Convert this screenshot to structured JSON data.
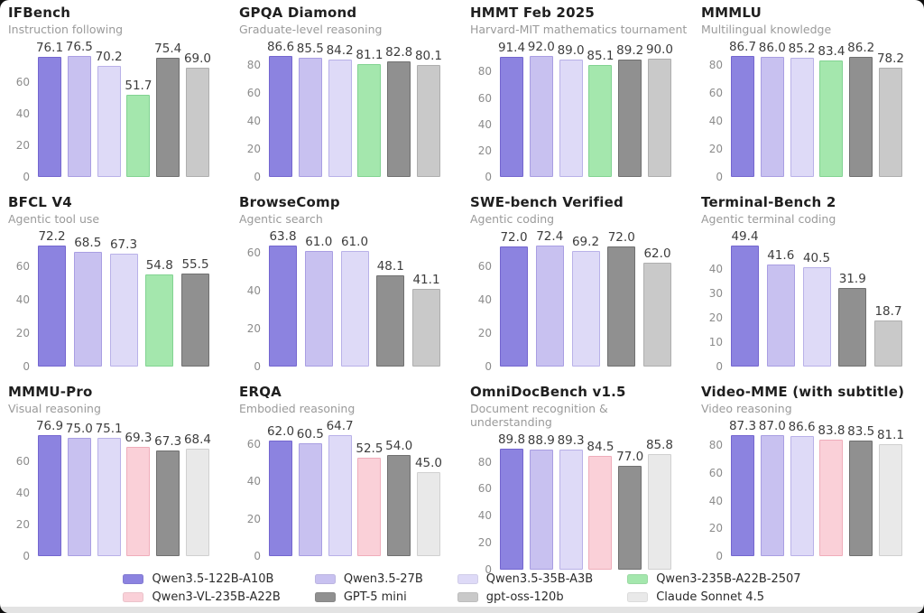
{
  "models": {
    "q122b": {
      "label": "Qwen3.5-122B-A10B",
      "color": "#8c83e0",
      "border": "#7466cf"
    },
    "q27b": {
      "label": "Qwen3.5-27B",
      "color": "#c8c1f0",
      "border": "#a99ee2"
    },
    "q35b": {
      "label": "Qwen3.5-35B-A3B",
      "color": "#dedaf7",
      "border": "#b9b1e8"
    },
    "q2507": {
      "label": "Qwen3-235B-A22B-2507",
      "color": "#a4e7ad",
      "border": "#82d392"
    },
    "qvl": {
      "label": "Qwen3-VL-235B-A22B",
      "color": "#fad0d8",
      "border": "#efadbb"
    },
    "gpt5mini": {
      "label": "GPT-5 mini",
      "color": "#909090",
      "border": "#707070"
    },
    "gptoss": {
      "label": "gpt-oss-120b",
      "color": "#c9c9c9",
      "border": "#aeaeae"
    },
    "claude": {
      "label": "Claude Sonnet 4.5",
      "color": "#e9e9e9",
      "border": "#d0d0d0"
    }
  },
  "legend": {
    "order": [
      "q122b",
      "q27b",
      "q35b",
      "q2507",
      "qvl",
      "gpt5mini",
      "gptoss",
      "claude"
    ]
  },
  "chart_data": [
    {
      "type": "bar",
      "title": "IFBench",
      "subtitle": "Instruction following",
      "categories": [
        "q122b",
        "q27b",
        "q35b",
        "q2507",
        "gpt5mini",
        "gptoss"
      ],
      "values": [
        76.1,
        76.5,
        70.2,
        51.7,
        75.4,
        69.0
      ],
      "ticks": [
        0,
        20,
        40,
        60
      ],
      "ylim": [
        0,
        78
      ]
    },
    {
      "type": "bar",
      "title": "GPQA Diamond",
      "subtitle": "Graduate-level reasoning",
      "categories": [
        "q122b",
        "q27b",
        "q35b",
        "q2507",
        "gpt5mini",
        "gptoss"
      ],
      "values": [
        86.6,
        85.5,
        84.2,
        81.1,
        82.8,
        80.1
      ],
      "ticks": [
        0,
        20,
        40,
        60,
        80
      ],
      "ylim": [
        0,
        88
      ]
    },
    {
      "type": "bar",
      "title": "HMMT Feb 2025",
      "subtitle": "Harvard-MIT mathematics tournament",
      "categories": [
        "q122b",
        "q27b",
        "q35b",
        "q2507",
        "gpt5mini",
        "gptoss"
      ],
      "values": [
        91.4,
        92.0,
        89.0,
        85.1,
        89.2,
        90.0
      ],
      "ticks": [
        0,
        20,
        40,
        60,
        80
      ],
      "ylim": [
        0,
        94
      ]
    },
    {
      "type": "bar",
      "title": "MMMLU",
      "subtitle": "Multilingual knowledge",
      "categories": [
        "q122b",
        "q27b",
        "q35b",
        "q2507",
        "gpt5mini",
        "gptoss"
      ],
      "values": [
        86.7,
        86.0,
        85.2,
        83.4,
        86.2,
        78.2
      ],
      "ticks": [
        0,
        20,
        40,
        60,
        80
      ],
      "ylim": [
        0,
        88
      ]
    },
    {
      "type": "bar",
      "title": "BFCL V4",
      "subtitle": "Agentic tool use",
      "categories": [
        "q122b",
        "q27b",
        "q35b",
        "q2507",
        "gpt5mini"
      ],
      "values": [
        72.2,
        68.5,
        67.3,
        54.8,
        55.5
      ],
      "ticks": [
        0,
        20,
        40,
        60
      ],
      "ylim": [
        0,
        74
      ]
    },
    {
      "type": "bar",
      "title": "BrowseComp",
      "subtitle": "Agentic search",
      "categories": [
        "q122b",
        "q27b",
        "q35b",
        "gpt5mini",
        "gptoss"
      ],
      "values": [
        63.8,
        61.0,
        61.0,
        48.1,
        41.1
      ],
      "ticks": [
        0,
        20,
        40,
        60
      ],
      "ylim": [
        0,
        66
      ]
    },
    {
      "type": "bar",
      "title": "SWE-bench Verified",
      "subtitle": "Agentic coding",
      "categories": [
        "q122b",
        "q27b",
        "q35b",
        "gpt5mini",
        "gptoss"
      ],
      "values": [
        72.0,
        72.4,
        69.2,
        72.0,
        62.0
      ],
      "ticks": [
        0,
        20,
        40,
        60
      ],
      "ylim": [
        0,
        74
      ]
    },
    {
      "type": "bar",
      "title": "Terminal-Bench 2",
      "subtitle": "Agentic terminal coding",
      "categories": [
        "q122b",
        "q27b",
        "q35b",
        "gpt5mini",
        "gptoss"
      ],
      "values": [
        49.4,
        41.6,
        40.5,
        31.9,
        18.7
      ],
      "ticks": [
        0,
        10,
        20,
        30,
        40
      ],
      "ylim": [
        0,
        51
      ]
    },
    {
      "type": "bar",
      "title": "MMMU-Pro",
      "subtitle": "Visual reasoning",
      "categories": [
        "q122b",
        "q27b",
        "q35b",
        "qvl",
        "gpt5mini",
        "claude"
      ],
      "values": [
        76.9,
        75.0,
        75.1,
        69.3,
        67.3,
        68.4
      ],
      "ticks": [
        0,
        20,
        40,
        60
      ],
      "ylim": [
        0,
        79
      ]
    },
    {
      "type": "bar",
      "title": "ERQA",
      "subtitle": "Embodied reasoning",
      "categories": [
        "q122b",
        "q27b",
        "q35b",
        "qvl",
        "gpt5mini",
        "claude"
      ],
      "values": [
        62.0,
        60.5,
        64.7,
        52.5,
        54.0,
        45.0
      ],
      "ticks": [
        0,
        20,
        40,
        60
      ],
      "ylim": [
        0,
        66
      ]
    },
    {
      "type": "bar",
      "title": "OmniDocBench v1.5",
      "subtitle": "Document recognition & understanding",
      "categories": [
        "q122b",
        "q27b",
        "q35b",
        "qvl",
        "gpt5mini",
        "claude"
      ],
      "values": [
        89.8,
        88.9,
        89.3,
        84.5,
        77.0,
        85.8
      ],
      "ticks": [
        0,
        20,
        40,
        60,
        80
      ],
      "ylim": [
        0,
        92
      ]
    },
    {
      "type": "bar",
      "title": "Video-MME (with subtitle)",
      "subtitle": "Video reasoning",
      "categories": [
        "q122b",
        "q27b",
        "q35b",
        "qvl",
        "gpt5mini",
        "claude"
      ],
      "values": [
        87.3,
        87.0,
        86.6,
        83.8,
        83.5,
        81.1
      ],
      "ticks": [
        0,
        20,
        40,
        60,
        80
      ],
      "ylim": [
        0,
        89
      ]
    }
  ]
}
